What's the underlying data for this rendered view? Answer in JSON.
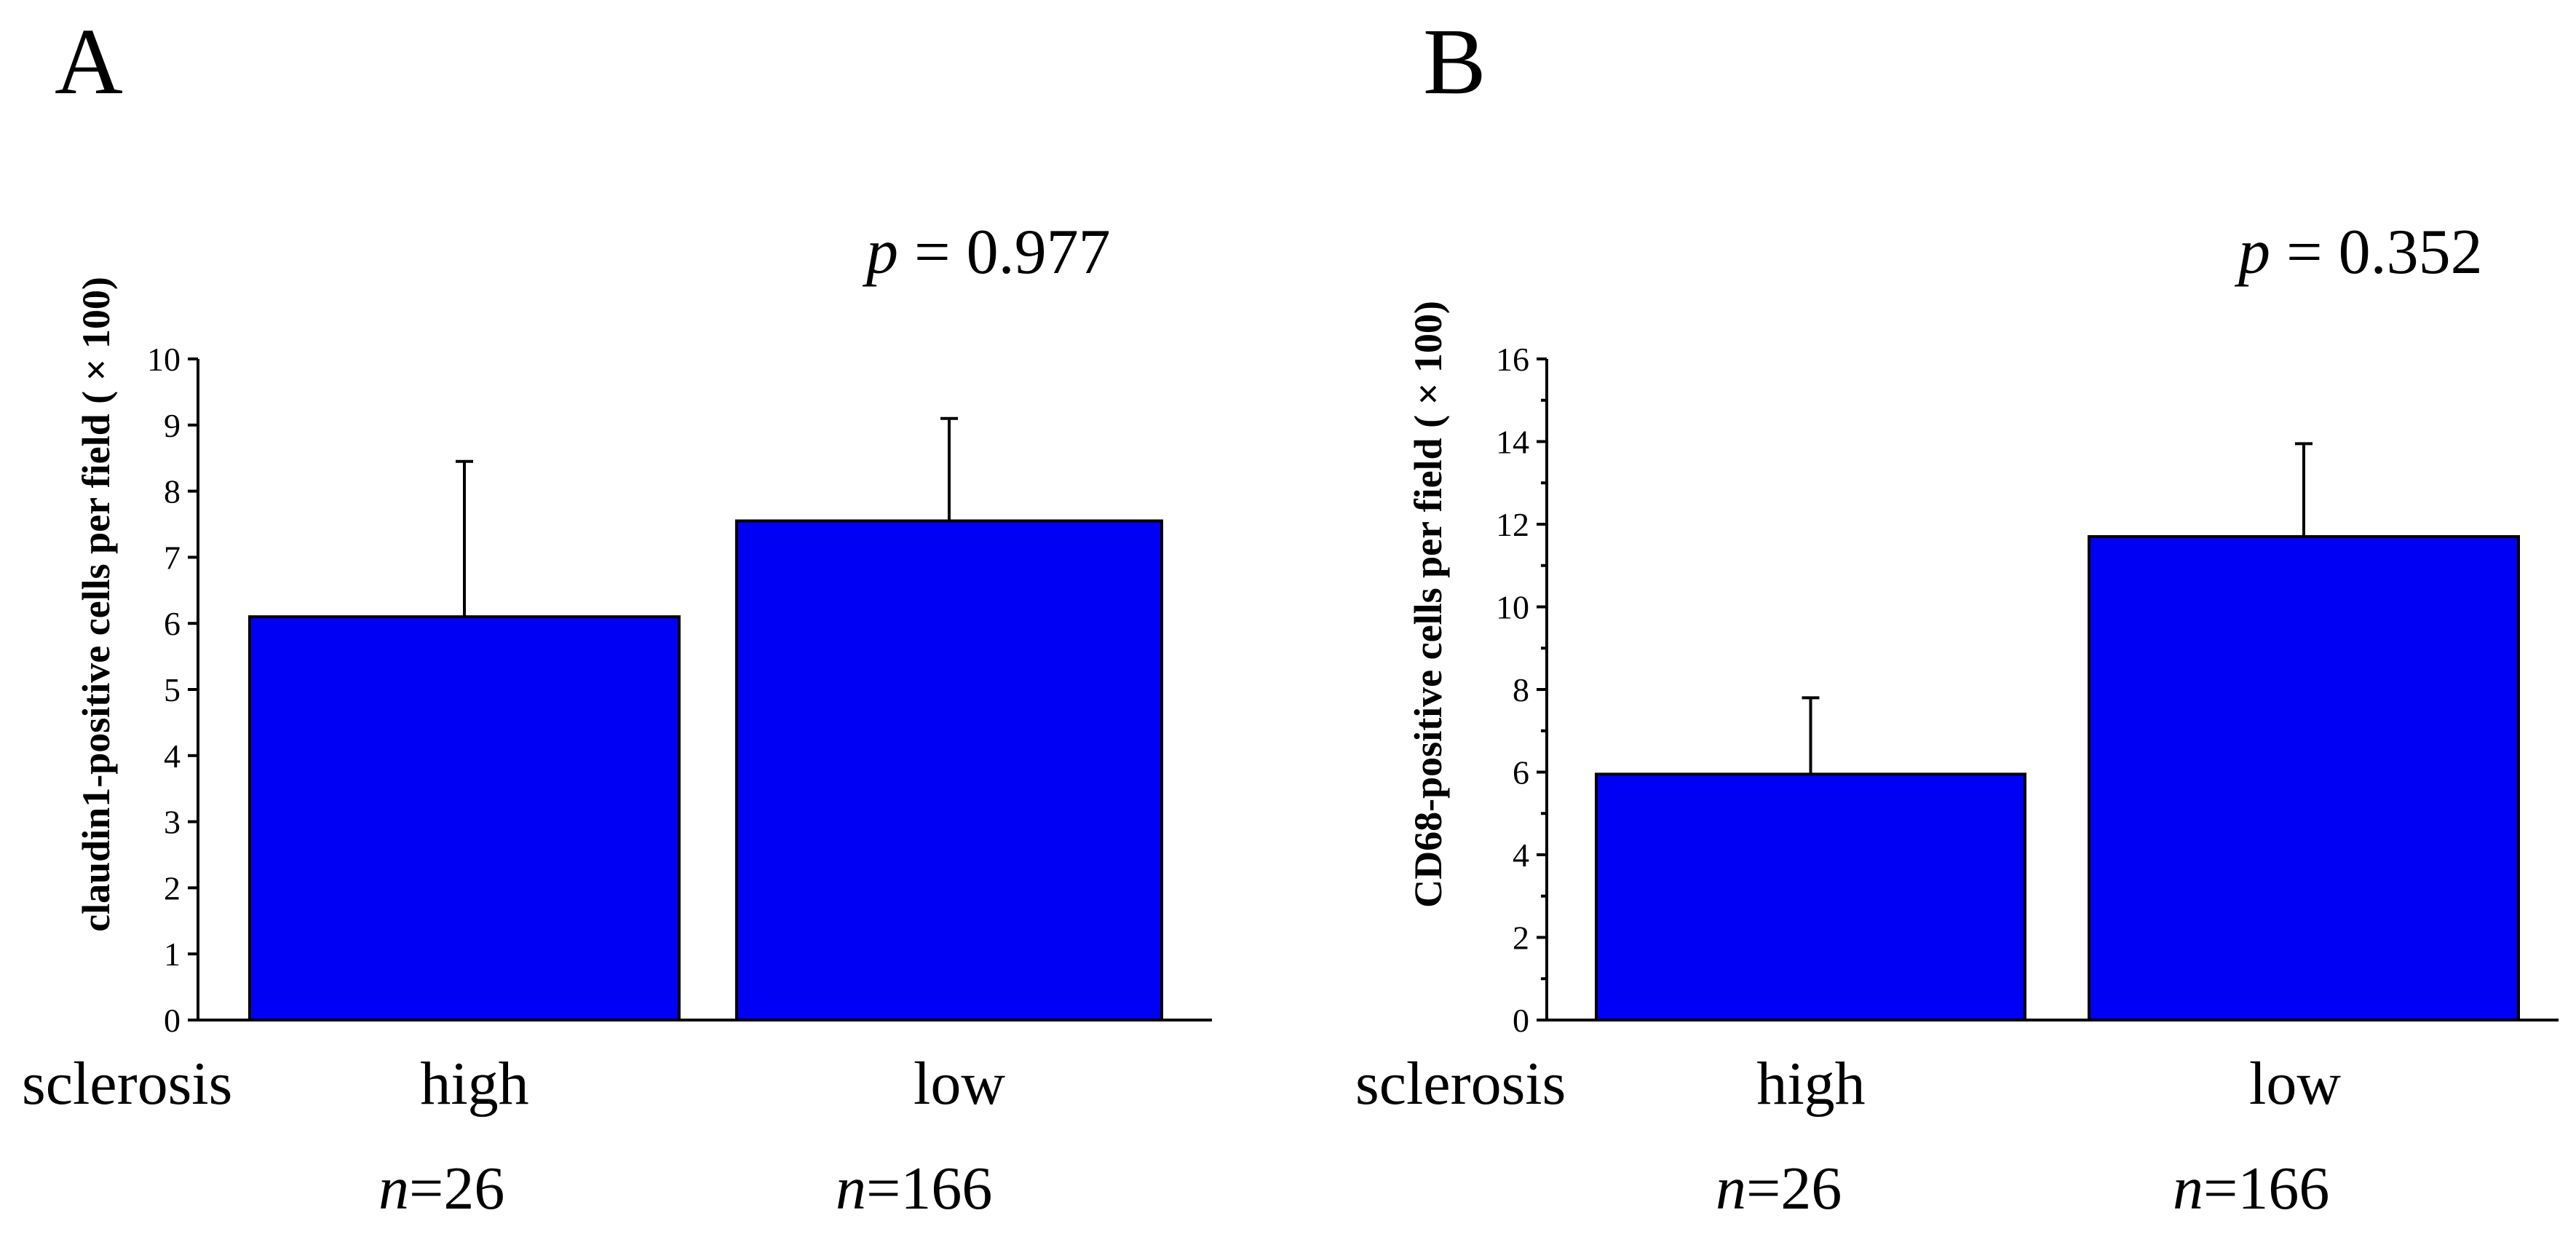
{
  "chart_data": [
    {
      "type": "bar",
      "panel": "A",
      "categories": [
        "high",
        "low"
      ],
      "values": [
        6.1,
        7.55
      ],
      "errors": [
        2.35,
        1.55
      ],
      "ylabel": "claudin1-positive cells per field ( × 100)",
      "ylim": [
        0,
        10
      ],
      "yticks": [
        "0",
        "1",
        "2",
        "3",
        "4",
        "5",
        "6",
        "7",
        "8",
        "9",
        "10"
      ],
      "minor_ticks": false,
      "p_value": {
        "symbol": "p",
        "text": " = 0.977"
      },
      "group_label": "sclerosis",
      "n_labels": [
        {
          "symbol": "n",
          "value": "=26"
        },
        {
          "symbol": "n",
          "value": "=166"
        }
      ],
      "bar_color": "#0000f5"
    },
    {
      "type": "bar",
      "panel": "B",
      "categories": [
        "high",
        "low"
      ],
      "values": [
        5.95,
        11.7
      ],
      "errors": [
        1.85,
        2.25
      ],
      "ylabel": "CD68-positive cells per field ( × 100)",
      "ylim": [
        0,
        16
      ],
      "yticks": [
        "0",
        "2",
        "4",
        "6",
        "8",
        "10",
        "12",
        "14",
        "16"
      ],
      "minor_ticks": true,
      "p_value": {
        "symbol": "p",
        "text": " = 0.352"
      },
      "group_label": "sclerosis",
      "n_labels": [
        {
          "symbol": "n",
          "value": "=26"
        },
        {
          "symbol": "n",
          "value": "=166"
        }
      ],
      "bar_color": "#0000f5"
    }
  ]
}
